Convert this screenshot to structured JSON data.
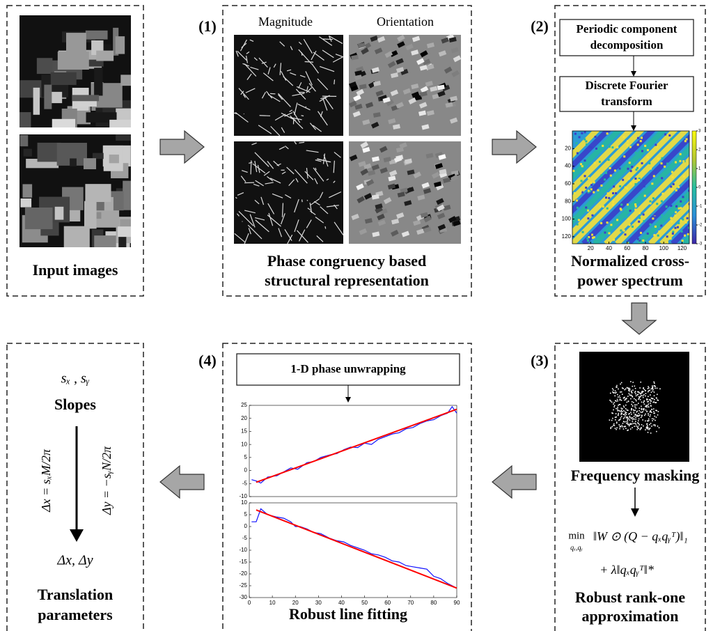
{
  "panels": {
    "input": {
      "label": "Input images"
    },
    "step1": {
      "number": "(1)",
      "col_headers": [
        "Magnitude",
        "Orientation"
      ],
      "label": [
        "Phase congruency based",
        "structural representation"
      ]
    },
    "step2": {
      "number": "(2)",
      "boxes": [
        [
          "Periodic component",
          "decomposition"
        ],
        [
          "Discrete Fourier",
          "transform"
        ]
      ],
      "label": [
        "Normalized cross-",
        "power spectrum"
      ],
      "spectrum": {
        "xlim": [
          0,
          128
        ],
        "ylim": [
          0,
          128
        ],
        "y_inverted": true,
        "xticks": [
          20,
          40,
          60,
          80,
          100,
          120
        ],
        "yticks": [
          20,
          40,
          60,
          80,
          100,
          120
        ],
        "colorbar_lim": [
          -3,
          3
        ],
        "colorbar_ticks": [
          3,
          2,
          1,
          0,
          -1,
          -2,
          -3
        ]
      }
    },
    "step3": {
      "number": "(3)",
      "mask_label": "Frequency masking",
      "formula": [
        "min",
        "qₓ,qᵧ",
        "‖W ⊙ (Q − qₓqᵧᵀ)‖₁",
        "+ λ‖qₓqᵧᵀ‖*"
      ],
      "label": [
        "Robust rank-one",
        "approximation"
      ]
    },
    "step4": {
      "number": "(4)",
      "box": "1-D phase unwrapping",
      "label": "Robust line fitting",
      "plots": [
        {
          "xlim": [
            0,
            90
          ],
          "ylim": [
            -10,
            25
          ],
          "yticks": [
            25,
            20,
            15,
            10,
            5,
            0,
            -5,
            -10
          ],
          "series": [
            {
              "color": "#1010ff",
              "x": [
                1,
                3,
                5,
                8,
                12,
                15,
                18,
                21,
                25,
                28,
                31,
                35,
                38,
                41,
                44,
                47,
                50,
                53,
                56,
                59,
                62,
                65,
                68,
                71,
                74,
                77,
                80,
                83,
                86,
                88,
                90
              ],
              "values": [
                -3.5,
                -4,
                -4.8,
                -2.5,
                -2,
                -0.5,
                1,
                0.5,
                3,
                3.5,
                5,
                6,
                6.5,
                8,
                9,
                8.8,
                10.5,
                10,
                12,
                13,
                14,
                14.5,
                16,
                16.5,
                18,
                19,
                19.5,
                21,
                22,
                24.5,
                22
              ]
            },
            {
              "color": "#ff0000",
              "x": [
                3,
                90
              ],
              "values": [
                -4.5,
                23.5
              ]
            }
          ]
        },
        {
          "xlim": [
            0,
            90
          ],
          "ylim": [
            -30,
            10
          ],
          "xticks": [
            0,
            10,
            20,
            30,
            40,
            50,
            60,
            70,
            80,
            90
          ],
          "yticks": [
            10,
            5,
            0,
            -5,
            -10,
            -15,
            -20,
            -25,
            -30
          ],
          "series": [
            {
              "color": "#1010ff",
              "x": [
                1,
                3,
                5,
                8,
                12,
                15,
                18,
                20,
                22,
                25,
                28,
                31,
                35,
                38,
                41,
                44,
                47,
                50,
                53,
                56,
                59,
                62,
                65,
                68,
                71,
                74,
                77,
                80,
                83,
                86,
                89
              ],
              "values": [
                2,
                2,
                7.5,
                5,
                4,
                3.5,
                2,
                0,
                0,
                -1,
                -2.5,
                -3,
                -5,
                -6,
                -6.5,
                -8,
                -9,
                -10,
                -11.5,
                -12,
                -13,
                -14.5,
                -15,
                -16.5,
                -17,
                -17.5,
                -18,
                -21,
                -22,
                -24,
                -25.5
              ]
            },
            {
              "color": "#ff0000",
              "x": [
                3,
                90
              ],
              "values": [
                7,
                -26
              ]
            }
          ]
        }
      ]
    },
    "output": {
      "slopes_symbol": "sₓ , sᵧ",
      "slopes": "Slopes",
      "eq_x": "Δx = sₓM/2π",
      "eq_y": "Δy = −sᵧN/2π",
      "result": "Δx, Δy",
      "label": [
        "Translation",
        "parameters"
      ]
    }
  }
}
